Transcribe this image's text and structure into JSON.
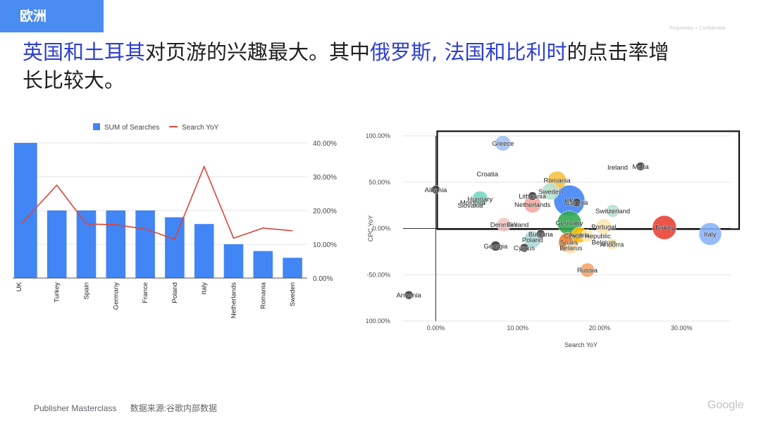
{
  "header": {
    "tag": "欧洲",
    "confidential": "Proprietary + Confidential"
  },
  "headline": {
    "line1_part1": "英国和土耳其",
    "line1_part2": "对页游的兴趣最大。其中",
    "line1_part3": "俄罗斯, 法国和比利时",
    "line1_part4": "的点击率增",
    "line2": "长比较大。"
  },
  "footer": {
    "source_name": "Publisher Masterclass",
    "source_note": "数据来源:谷歌内部数据",
    "logo": "Google"
  },
  "colors": {
    "bar": "#4285f4",
    "line": "#d9473b",
    "accent": "#2d3fd0",
    "tag_bg": "#4a8cf0"
  },
  "chart_data": [
    {
      "type": "bar",
      "legend": [
        "SUM of Searches",
        "Search YoY"
      ],
      "legend_position": "top",
      "categories": [
        "UK",
        "Turkey",
        "Spain",
        "Germany",
        "France",
        "Poland",
        "Italy",
        "Netherlands",
        "Romania",
        "Sweden"
      ],
      "series": [
        {
          "name": "SUM of Searches",
          "type": "bar",
          "values": [
            100,
            50,
            50,
            50,
            50,
            45,
            40,
            25,
            20,
            15
          ]
        },
        {
          "name": "Search YoY",
          "type": "line",
          "axis": "right",
          "values": [
            0.16,
            0.275,
            0.16,
            0.158,
            0.145,
            0.115,
            0.33,
            0.118,
            0.148,
            0.14
          ]
        }
      ],
      "y2_ticks": [
        "40.00%",
        "30.00%",
        "20.00%",
        "10.00%",
        "0.00%"
      ],
      "y2lim": [
        0,
        0.4
      ],
      "grid": true
    },
    {
      "type": "scatter",
      "xlabel": "Search YoY",
      "ylabel": "CPC YoY",
      "xlim": [
        -0.04,
        0.36
      ],
      "ylim": [
        -1.0,
        1.0
      ],
      "x_ticks": [
        "0.00%",
        "10.00%",
        "20.00%",
        "30.00%"
      ],
      "y_ticks": [
        "100.00%",
        "50.00%",
        "0.00%",
        "-50.00%",
        "-100.00%"
      ],
      "highlight_box": {
        "x": [
          0.0,
          0.36
        ],
        "y": [
          0.0,
          1.05
        ]
      },
      "points": [
        {
          "label": "Greece",
          "x": 0.082,
          "y": 0.92,
          "color": "#a4c2f4",
          "size": 11
        },
        {
          "label": "Croatia",
          "x": 0.063,
          "y": 0.59,
          "color": "#ffffff",
          "size": 0
        },
        {
          "label": "Ireland",
          "x": 0.222,
          "y": 0.66,
          "color": "#ffffff",
          "size": 0
        },
        {
          "label": "Malta",
          "x": 0.25,
          "y": 0.67,
          "color": "#3c3c3c",
          "size": 6
        },
        {
          "label": "Albania",
          "x": 0.0,
          "y": 0.42,
          "color": "#3c3c3c",
          "size": 6
        },
        {
          "label": "Romania",
          "x": 0.148,
          "y": 0.52,
          "color": "#f6c244",
          "size": 13
        },
        {
          "label": "Sweden",
          "x": 0.14,
          "y": 0.4,
          "color": "#b7e1cd",
          "size": 12
        },
        {
          "label": "Lithuania",
          "x": 0.118,
          "y": 0.35,
          "color": "#3c3c3c",
          "size": 6
        },
        {
          "label": "Hungary",
          "x": 0.054,
          "y": 0.32,
          "color": "#76d7c4",
          "size": 11
        },
        {
          "label": "Moldova",
          "x": 0.045,
          "y": 0.28,
          "color": "#ffffff",
          "size": 0
        },
        {
          "label": "Slovakia",
          "x": 0.042,
          "y": 0.25,
          "color": "#ffffff",
          "size": 0
        },
        {
          "label": "Netherlands",
          "x": 0.118,
          "y": 0.26,
          "color": "#f4a7a0",
          "size": 12
        },
        {
          "label": "UK",
          "x": 0.163,
          "y": 0.3,
          "color": "#4285f4",
          "size": 22
        },
        {
          "label": "Estonia",
          "x": 0.172,
          "y": 0.28,
          "color": "#3c3c3c",
          "size": 6
        },
        {
          "label": "Switzerland",
          "x": 0.216,
          "y": 0.19,
          "color": "#b7e1cd",
          "size": 9
        },
        {
          "label": "Germany",
          "x": 0.163,
          "y": 0.06,
          "color": "#34a853",
          "size": 17
        },
        {
          "label": "Denmark",
          "x": 0.083,
          "y": 0.04,
          "color": "#f4c7c3",
          "size": 10
        },
        {
          "label": "Finland",
          "x": 0.1,
          "y": 0.04,
          "color": "#ffffff",
          "size": 0
        },
        {
          "label": "Portugal",
          "x": 0.205,
          "y": 0.02,
          "color": "#fce8b2",
          "size": 11
        },
        {
          "label": "Turkey",
          "x": 0.279,
          "y": 0.01,
          "color": "#ea4335",
          "size": 17
        },
        {
          "label": "Italy",
          "x": 0.335,
          "y": -0.06,
          "color": "#8ab4f8",
          "size": 16
        },
        {
          "label": "Bulgaria",
          "x": 0.128,
          "y": -0.06,
          "color": "#3c3c3c",
          "size": 6
        },
        {
          "label": "Czech Republic",
          "x": 0.185,
          "y": -0.08,
          "color": "#fce8b2",
          "size": 9
        },
        {
          "label": "Austria",
          "x": 0.175,
          "y": -0.07,
          "color": "#fbbc04",
          "size": 11
        },
        {
          "label": "Poland",
          "x": 0.118,
          "y": -0.12,
          "color": "#a8dadc",
          "size": 12
        },
        {
          "label": "Spain",
          "x": 0.162,
          "y": -0.15,
          "color": "#fa7b17",
          "size": 14
        },
        {
          "label": "Belgium",
          "x": 0.205,
          "y": -0.15,
          "color": "#ffffff",
          "size": 0
        },
        {
          "label": "Andorra",
          "x": 0.215,
          "y": -0.17,
          "color": "#fce8b2",
          "size": 8
        },
        {
          "label": "Georgia",
          "x": 0.073,
          "y": -0.19,
          "color": "#3c3c3c",
          "size": 7
        },
        {
          "label": "Cyprus",
          "x": 0.108,
          "y": -0.21,
          "color": "#3c3c3c",
          "size": 6
        },
        {
          "label": "Belarus",
          "x": 0.165,
          "y": -0.21,
          "color": "#fce8b2",
          "size": 9
        },
        {
          "label": "Russia",
          "x": 0.185,
          "y": -0.45,
          "color": "#f4a56a",
          "size": 10
        },
        {
          "label": "Armenia",
          "x": -0.033,
          "y": -0.72,
          "color": "#3c3c3c",
          "size": 6
        }
      ]
    }
  ]
}
